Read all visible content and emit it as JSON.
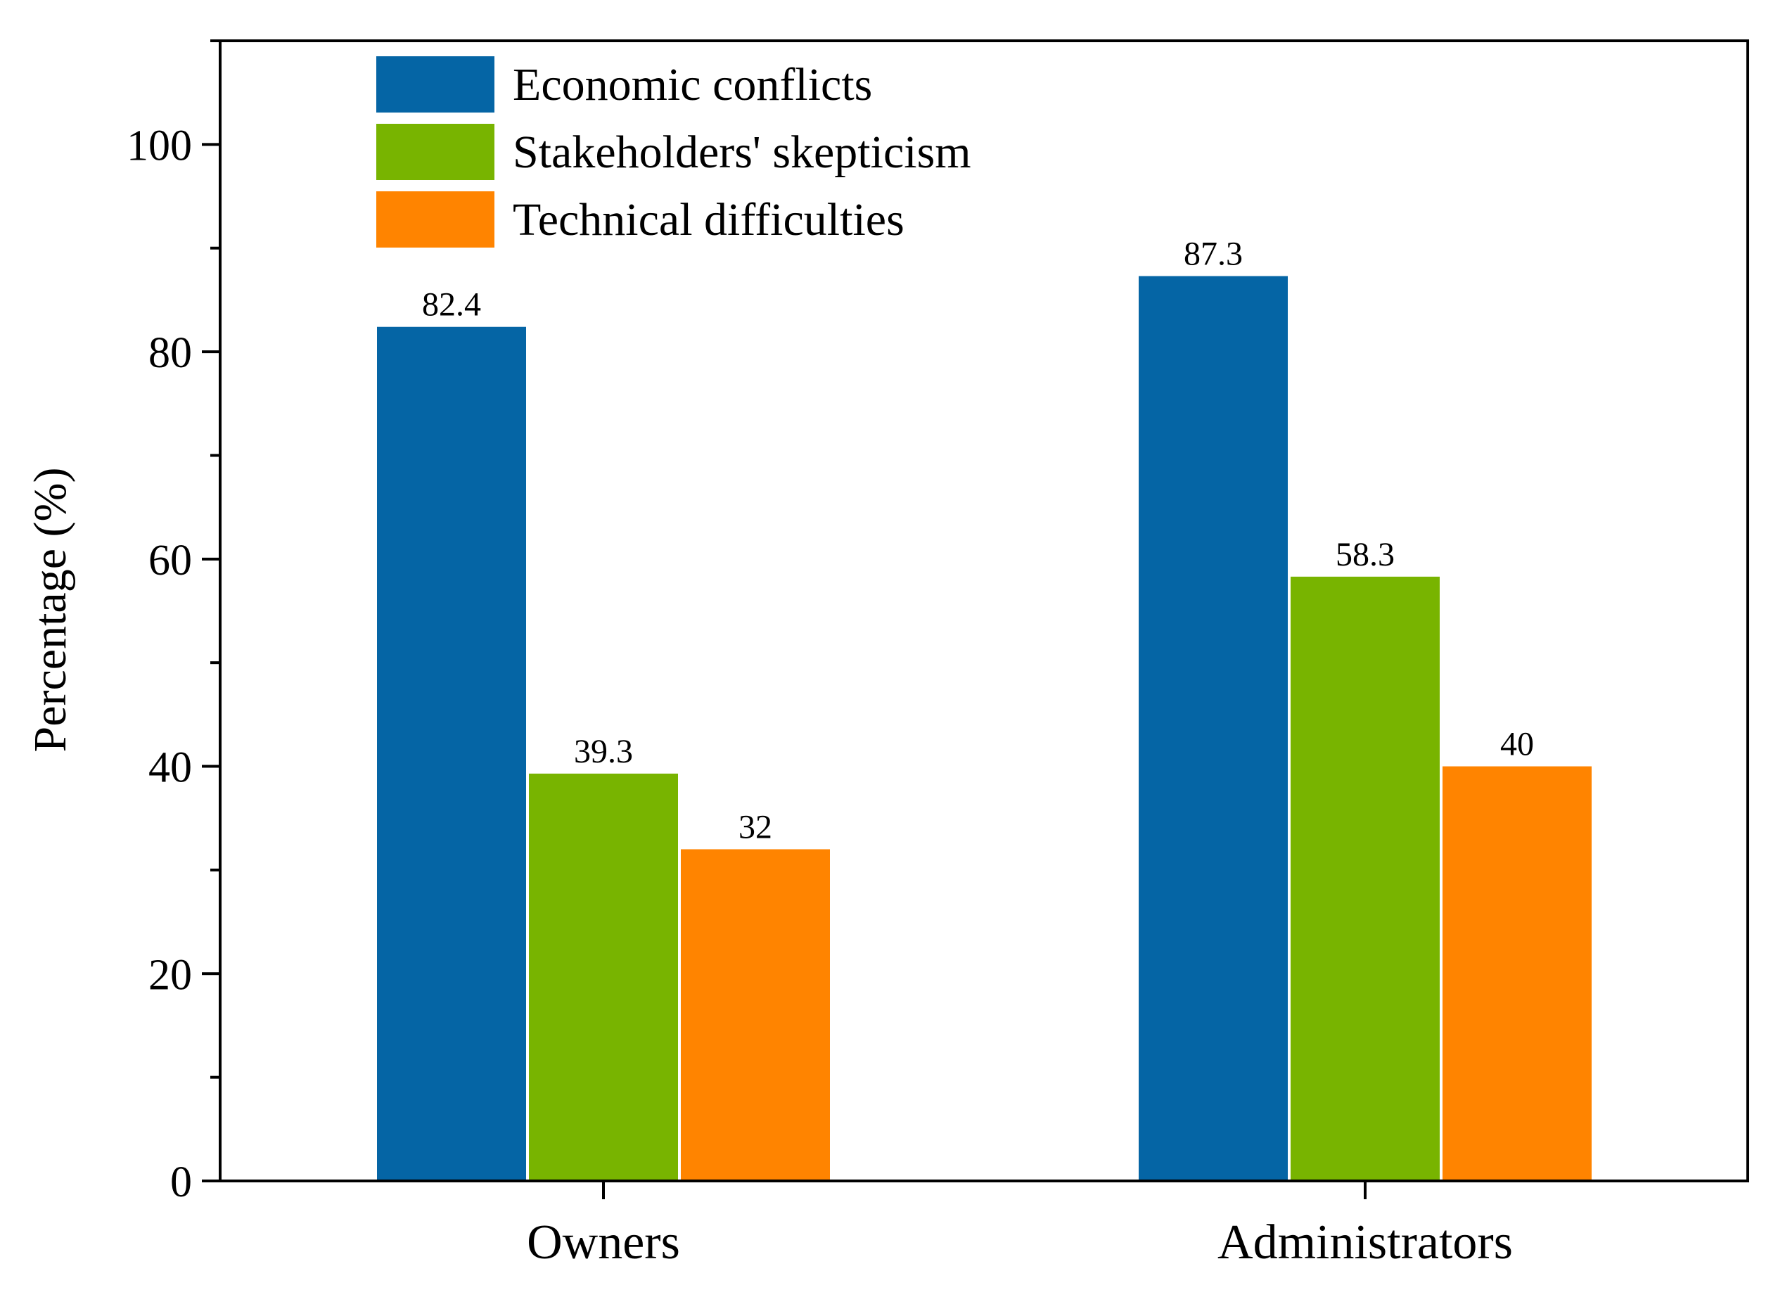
{
  "chart_data": {
    "type": "bar",
    "title": "",
    "xlabel": "",
    "ylabel": "Percentage (%)",
    "ylim": [
      0,
      110
    ],
    "yticks": [
      0,
      20,
      40,
      60,
      80,
      100
    ],
    "y_minor_step": 10,
    "grid": false,
    "legend_position": "top-left",
    "categories": [
      "Owners",
      "Administrators"
    ],
    "series": [
      {
        "name": "Economic conflicts",
        "color": "#0565a5",
        "values": [
          82.4,
          87.3
        ],
        "labels": [
          "82.4",
          "87.3"
        ]
      },
      {
        "name": "Stakeholders' skepticism",
        "color": "#78b400",
        "values": [
          39.3,
          58.3
        ],
        "labels": [
          "39.3",
          "58.3"
        ]
      },
      {
        "name": "Technical difficulties",
        "color": "#ff8400",
        "values": [
          32,
          40
        ],
        "labels": [
          "32",
          "40"
        ]
      }
    ]
  }
}
